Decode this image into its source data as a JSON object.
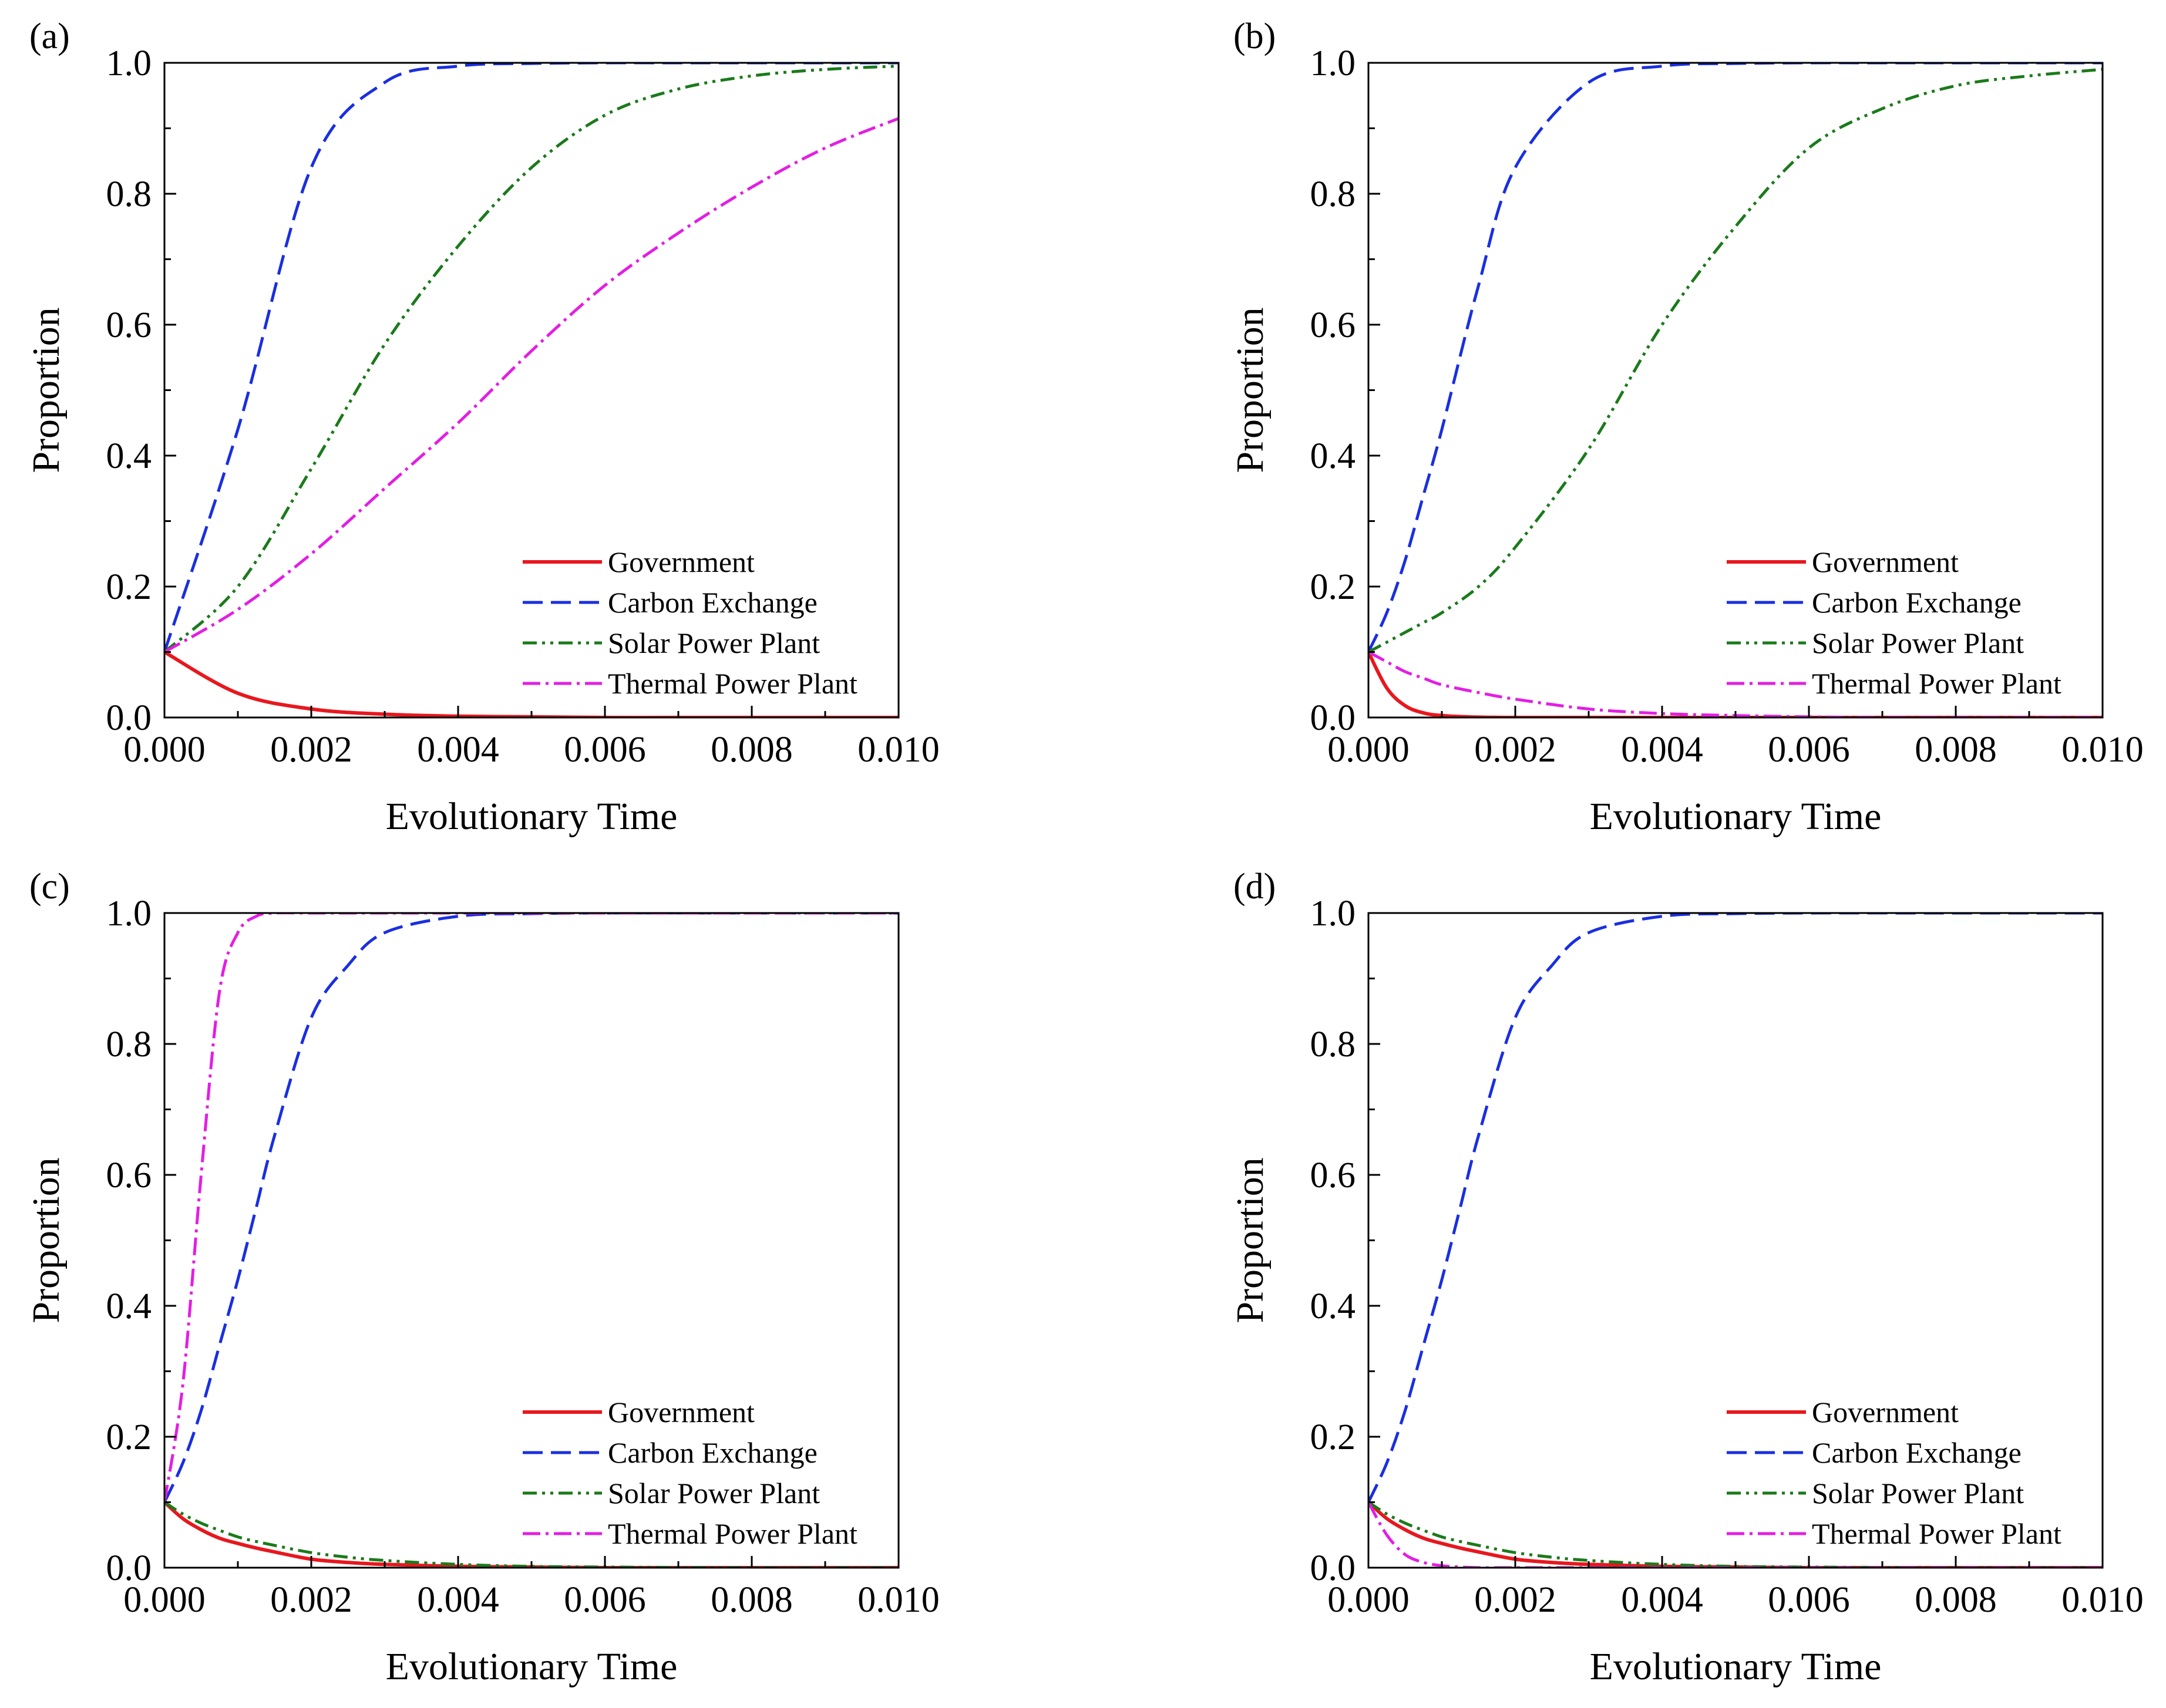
{
  "legend": [
    "Government",
    "Carbon Exchange",
    "Solar Power Plant",
    "Thermal Power Plant"
  ],
  "series_colors": {
    "Government": "#e8171e",
    "Carbon Exchange": "#1a2fe0",
    "Solar Power Plant": "#1b7a1b",
    "Thermal Power Plant": "#e31ee3"
  },
  "chart_data": [
    {
      "type": "line",
      "panel_label": "(a)",
      "xlabel": "Evolutionary Time",
      "ylabel": "Proportion",
      "xlim": [
        0,
        0.01
      ],
      "ylim": [
        0,
        1
      ],
      "xticks": [
        "0.000",
        "0.002",
        "0.004",
        "0.006",
        "0.008",
        "0.010"
      ],
      "yticks": [
        "0.0",
        "0.2",
        "0.4",
        "0.6",
        "0.8",
        "1.0"
      ],
      "legend_position": "bottom-right",
      "x": [
        0,
        0.001,
        0.002,
        0.003,
        0.004,
        0.005,
        0.006,
        0.007,
        0.008,
        0.009,
        0.01
      ],
      "series": [
        {
          "name": "Government",
          "values": [
            0.1,
            0.037,
            0.013,
            0.005,
            0.002,
            0.001,
            0.0,
            0.0,
            0.0,
            0.0,
            0.0
          ]
        },
        {
          "name": "Carbon Exchange",
          "values": [
            0.1,
            0.44,
            0.84,
            0.97,
            0.995,
            0.999,
            1.0,
            1.0,
            1.0,
            1.0,
            1.0
          ]
        },
        {
          "name": "Solar Power Plant",
          "values": [
            0.1,
            0.2,
            0.38,
            0.57,
            0.72,
            0.84,
            0.92,
            0.96,
            0.98,
            0.99,
            0.995
          ]
        },
        {
          "name": "Thermal Power Plant",
          "values": [
            0.1,
            0.165,
            0.25,
            0.35,
            0.45,
            0.56,
            0.66,
            0.74,
            0.81,
            0.87,
            0.915
          ]
        }
      ]
    },
    {
      "type": "line",
      "panel_label": "(b)",
      "xlabel": "Evolutionary Time",
      "ylabel": "Proportion",
      "xlim": [
        0,
        0.01
      ],
      "ylim": [
        0,
        1
      ],
      "xticks": [
        "0.000",
        "0.002",
        "0.004",
        "0.006",
        "0.008",
        "0.010"
      ],
      "yticks": [
        "0.0",
        "0.2",
        "0.4",
        "0.6",
        "0.8",
        "1.0"
      ],
      "legend_position": "bottom-right",
      "x": [
        0,
        0.00025,
        0.0005,
        0.00075,
        0.001,
        0.0015,
        0.002,
        0.003,
        0.004,
        0.005,
        0.006,
        0.007,
        0.008,
        0.009,
        0.01
      ],
      "series": [
        {
          "name": "Government",
          "values": [
            0.1,
            0.045,
            0.018,
            0.007,
            0.003,
            0.0005,
            0.0,
            0.0,
            0.0,
            0.0,
            0.0,
            0.0,
            0.0,
            0.0,
            0.0
          ]
        },
        {
          "name": "Carbon Exchange",
          "values": [
            0.1,
            0.16,
            0.24,
            0.34,
            0.44,
            0.66,
            0.84,
            0.97,
            0.995,
            0.999,
            1.0,
            1.0,
            1.0,
            1.0,
            1.0
          ]
        },
        {
          "name": "Solar Power Plant",
          "values": [
            0.1,
            0.115,
            0.13,
            0.145,
            0.16,
            0.2,
            0.26,
            0.41,
            0.6,
            0.75,
            0.87,
            0.93,
            0.965,
            0.98,
            0.99
          ]
        },
        {
          "name": "Thermal Power Plant",
          "values": [
            0.1,
            0.085,
            0.07,
            0.06,
            0.05,
            0.038,
            0.028,
            0.013,
            0.006,
            0.003,
            0.001,
            0.0,
            0.0,
            0.0,
            0.0
          ]
        }
      ]
    },
    {
      "type": "line",
      "panel_label": "(c)",
      "xlabel": "Evolutionary Time",
      "ylabel": "Proportion",
      "xlim": [
        0,
        0.01
      ],
      "ylim": [
        0,
        1
      ],
      "xticks": [
        "0.000",
        "0.002",
        "0.004",
        "0.006",
        "0.008",
        "0.010"
      ],
      "yticks": [
        "0.0",
        "0.2",
        "0.4",
        "0.6",
        "0.8",
        "1.0"
      ],
      "legend_position": "bottom-right",
      "x": [
        0,
        0.00025,
        0.0005,
        0.00075,
        0.001,
        0.00125,
        0.0015,
        0.002,
        0.0025,
        0.003,
        0.004,
        0.005,
        0.006,
        0.008,
        0.01
      ],
      "series": [
        {
          "name": "Government",
          "values": [
            0.1,
            0.075,
            0.058,
            0.045,
            0.037,
            0.03,
            0.024,
            0.013,
            0.008,
            0.005,
            0.002,
            0.001,
            0.0,
            0.0,
            0.0
          ]
        },
        {
          "name": "Carbon Exchange",
          "values": [
            0.1,
            0.16,
            0.24,
            0.34,
            0.44,
            0.55,
            0.66,
            0.84,
            0.92,
            0.97,
            0.995,
            0.999,
            1.0,
            1.0,
            1.0
          ]
        },
        {
          "name": "Solar Power Plant",
          "values": [
            0.1,
            0.082,
            0.068,
            0.057,
            0.047,
            0.04,
            0.034,
            0.023,
            0.016,
            0.011,
            0.005,
            0.002,
            0.001,
            0.0,
            0.0
          ]
        },
        {
          "name": "Thermal Power Plant",
          "values": [
            0.1,
            0.28,
            0.6,
            0.88,
            0.97,
            0.995,
            1.0,
            1.0,
            1.0,
            1.0,
            1.0,
            1.0,
            1.0,
            1.0,
            1.0
          ]
        }
      ]
    },
    {
      "type": "line",
      "panel_label": "(d)",
      "xlabel": "Evolutionary Time",
      "ylabel": "Proportion",
      "xlim": [
        0,
        0.01
      ],
      "ylim": [
        0,
        1
      ],
      "xticks": [
        "0.000",
        "0.002",
        "0.004",
        "0.006",
        "0.008",
        "0.010"
      ],
      "yticks": [
        "0.0",
        "0.2",
        "0.4",
        "0.6",
        "0.8",
        "1.0"
      ],
      "legend_position": "bottom-right",
      "x": [
        0,
        0.00025,
        0.0005,
        0.00075,
        0.001,
        0.00125,
        0.0015,
        0.002,
        0.0025,
        0.003,
        0.004,
        0.005,
        0.006,
        0.008,
        0.01
      ],
      "series": [
        {
          "name": "Government",
          "values": [
            0.1,
            0.075,
            0.058,
            0.045,
            0.037,
            0.03,
            0.024,
            0.013,
            0.008,
            0.005,
            0.002,
            0.001,
            0.0,
            0.0,
            0.0
          ]
        },
        {
          "name": "Carbon Exchange",
          "values": [
            0.1,
            0.16,
            0.24,
            0.34,
            0.44,
            0.55,
            0.66,
            0.84,
            0.92,
            0.97,
            0.995,
            0.999,
            1.0,
            1.0,
            1.0
          ]
        },
        {
          "name": "Solar Power Plant",
          "values": [
            0.1,
            0.082,
            0.068,
            0.057,
            0.047,
            0.04,
            0.034,
            0.023,
            0.016,
            0.011,
            0.005,
            0.002,
            0.001,
            0.0,
            0.0
          ]
        },
        {
          "name": "Thermal Power Plant",
          "values": [
            0.1,
            0.05,
            0.02,
            0.008,
            0.003,
            0.001,
            0.0,
            0.0,
            0.0,
            0.0,
            0.0,
            0.0,
            0.0,
            0.0,
            0.0
          ]
        }
      ]
    }
  ]
}
